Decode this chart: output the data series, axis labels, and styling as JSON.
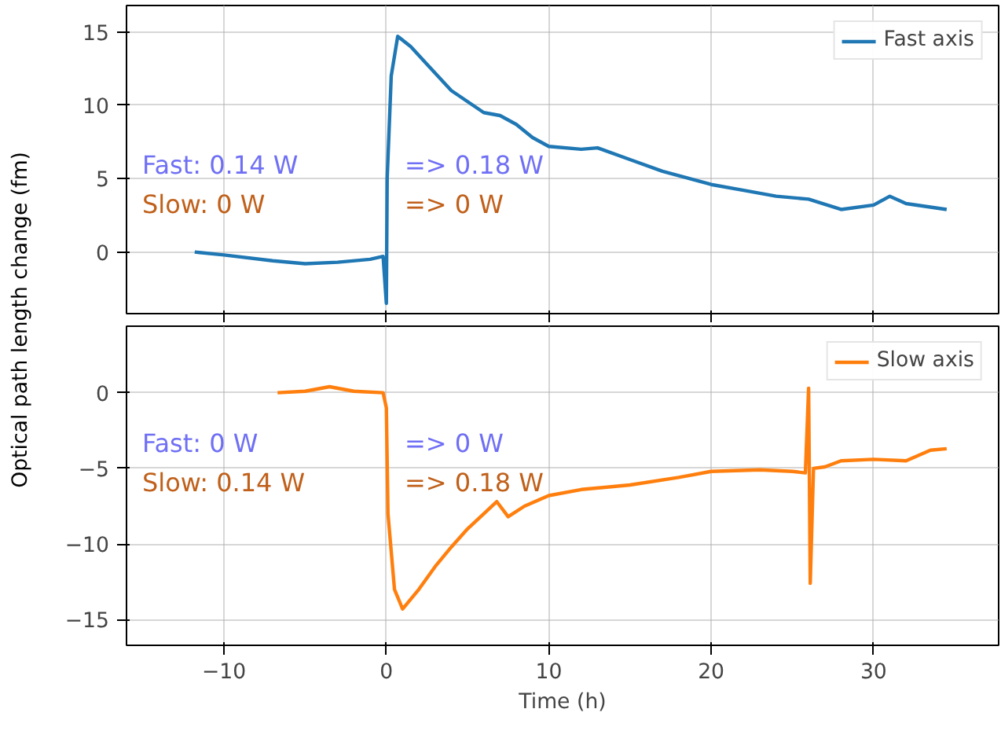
{
  "chart_data": [
    {
      "type": "line",
      "ylabel": "Optical path length change (fm)",
      "xlim": [
        -16,
        37.7
      ],
      "ylim": [
        -4.2,
        16.8
      ],
      "xticks": [
        -10,
        0,
        10,
        20,
        30
      ],
      "yticks": [
        0,
        5,
        10,
        15
      ],
      "tick_labels": "y",
      "grid": true,
      "legend": "top right",
      "annotations": [
        "Fast: 0.14 W",
        "=> 0.18 W",
        "Slow: 0 W",
        "=> 0 W"
      ],
      "series": [
        {
          "name": "Fast axis",
          "color": "#1f77b4",
          "x": [
            -11.8,
            -10,
            -7,
            -5,
            -3,
            -1,
            -0.2,
            0,
            0.05,
            0.3,
            0.7,
            1.5,
            2.5,
            4,
            6,
            7,
            8,
            9,
            10,
            12,
            13,
            15,
            17,
            20,
            22,
            24,
            26,
            28,
            30,
            31,
            32,
            34.5
          ],
          "values": [
            0,
            -0.2,
            -0.6,
            -0.8,
            -0.7,
            -0.5,
            -0.3,
            -3.5,
            5,
            12,
            14.7,
            14,
            12.8,
            11,
            9.5,
            9.3,
            8.7,
            7.8,
            7.2,
            7,
            7.1,
            6.3,
            5.5,
            4.6,
            4.2,
            3.8,
            3.6,
            2.9,
            3.2,
            3.8,
            3.3,
            2.9
          ]
        }
      ]
    },
    {
      "type": "line",
      "xlabel": "Time (h)",
      "xlim": [
        -16,
        37.7
      ],
      "ylim": [
        -16.7,
        4.4
      ],
      "xticks": [
        -10,
        0,
        10,
        20,
        30
      ],
      "yticks": [
        -15,
        -10,
        -5,
        0
      ],
      "grid": true,
      "legend": "top right",
      "annotations": [
        "Fast: 0 W",
        "=> 0 W",
        "Slow: 0.14 W",
        "=> 0.18 W"
      ],
      "series": [
        {
          "name": "Slow axis",
          "color": "#ff7f0e",
          "x": [
            -6.7,
            -5,
            -3.5,
            -2,
            -0.2,
            0,
            0.1,
            0.5,
            1,
            2,
            3,
            4,
            5,
            6,
            6.8,
            7.5,
            8.5,
            10,
            12,
            15,
            18,
            20,
            23,
            25,
            25.8,
            26,
            26.1,
            26.3,
            27,
            28,
            30,
            32,
            33.5,
            34.5
          ],
          "values": [
            0,
            0.1,
            0.4,
            0.1,
            0,
            -1,
            -8,
            -13,
            -14.3,
            -13,
            -11.5,
            -10.2,
            -9,
            -8,
            -7.2,
            -8.2,
            -7.5,
            -6.8,
            -6.4,
            -6.1,
            -5.6,
            -5.2,
            -5.1,
            -5.2,
            -5.3,
            0.3,
            -12.6,
            -5,
            -4.9,
            -4.5,
            -4.4,
            -4.5,
            -3.8,
            -3.7
          ]
        }
      ]
    }
  ]
}
